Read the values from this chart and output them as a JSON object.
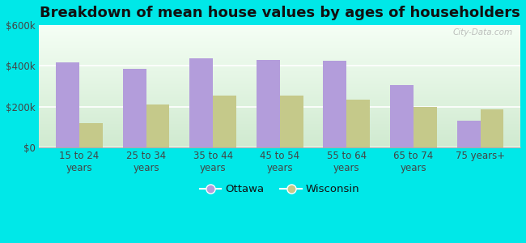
{
  "title": "Breakdown of mean house values by ages of householders",
  "categories": [
    "15 to 24\nyears",
    "25 to 34\nyears",
    "35 to 44\nyears",
    "45 to 54\nyears",
    "55 to 64\nyears",
    "65 to 74\nyears",
    "75 years+"
  ],
  "ottawa_values": [
    415000,
    385000,
    435000,
    430000,
    425000,
    305000,
    130000
  ],
  "wisconsin_values": [
    120000,
    210000,
    255000,
    255000,
    235000,
    200000,
    185000
  ],
  "ottawa_color": "#b39ddb",
  "wisconsin_color": "#c5c98a",
  "background_color": "#00e8e8",
  "plot_bg_top": "#f5fff5",
  "plot_bg_bottom": "#d0ead0",
  "ylim": [
    0,
    600000
  ],
  "yticks": [
    0,
    200000,
    400000,
    600000
  ],
  "ytick_labels": [
    "$0",
    "$200k",
    "$400k",
    "$600k"
  ],
  "legend_labels": [
    "Ottawa",
    "Wisconsin"
  ],
  "watermark": "City-Data.com",
  "bar_width": 0.35,
  "title_fontsize": 13,
  "tick_fontsize": 8.5,
  "legend_fontsize": 9.5
}
